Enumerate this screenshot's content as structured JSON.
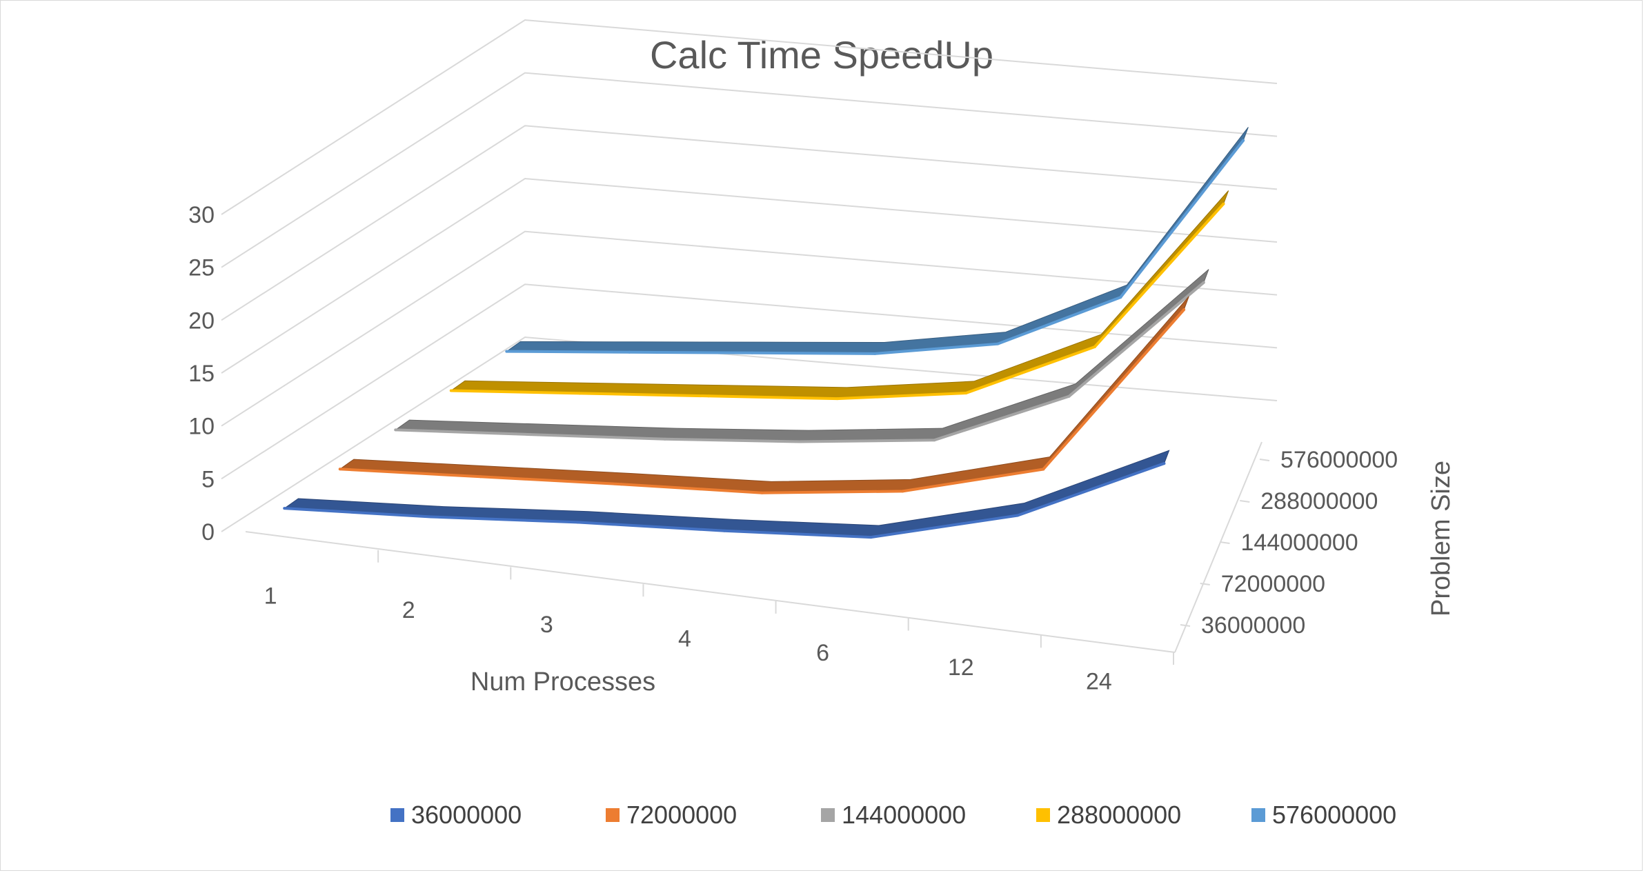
{
  "chart_data": {
    "type": "line",
    "variant": "3d-ribbon",
    "title": "Calc Time SpeedUp",
    "xlabel": "Num Processes",
    "zlabel": "Problem Size",
    "categories": [
      "1",
      "2",
      "3",
      "4",
      "6",
      "12",
      "24"
    ],
    "yticks": [
      "0",
      "5",
      "10",
      "15",
      "20",
      "25",
      "30"
    ],
    "ylim": [
      0,
      30
    ],
    "depth_labels": [
      "36000000",
      "72000000",
      "144000000",
      "288000000",
      "576000000"
    ],
    "legend_position": "bottom",
    "gridlines": true,
    "series": [
      {
        "name": "36000000",
        "color": "#4472C4",
        "values": [
          1,
          2,
          3.3,
          4.3,
          5.5,
          9.5,
          16.5
        ]
      },
      {
        "name": "72000000",
        "color": "#ED7D31",
        "values": [
          1,
          1.9,
          2.8,
          3.6,
          5.4,
          9.2,
          26.5
        ]
      },
      {
        "name": "144000000",
        "color": "#A5A5A5",
        "values": [
          1,
          2,
          3,
          4.2,
          5.8,
          11.5,
          24
        ]
      },
      {
        "name": "288000000",
        "color": "#FFC000",
        "values": [
          1,
          2,
          3,
          4,
          5.8,
          11.5,
          26.5
        ]
      },
      {
        "name": "576000000",
        "color": "#5B9BD5",
        "values": [
          1,
          2,
          3,
          4,
          6,
          11.5,
          27.5
        ]
      }
    ]
  }
}
